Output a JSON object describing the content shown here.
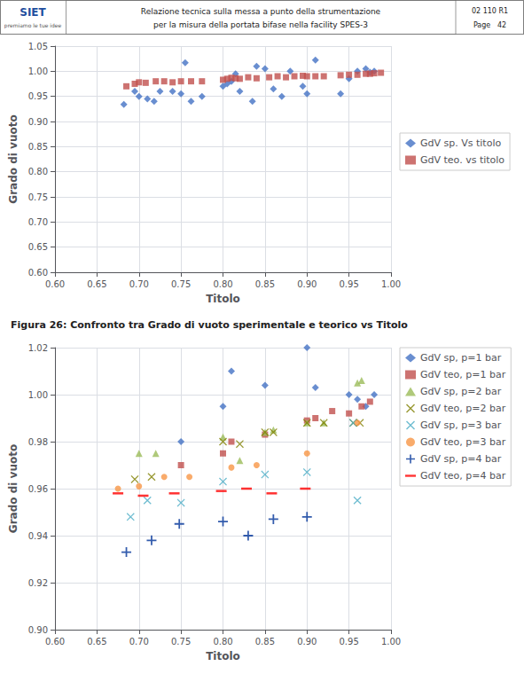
{
  "header": {
    "logo": "SIET",
    "logo_color": "#1F4E9E",
    "logo_tagline": "premiamo le tue idee",
    "text": [
      "Relazione tecnica sulla messa a punto della strumentazione",
      "per la misura della portata bifase nella facility SPES-3"
    ],
    "right": [
      "02 110 R1",
      "Page   42"
    ]
  },
  "caption": "Figura 26: Confronto tra Grado di vuoto sperimentale e teorico vs Titolo",
  "chart_data": [
    {
      "type": "scatter",
      "xlabel": "Titolo",
      "ylabel": "Grado di vuoto",
      "xlim": [
        0.6,
        1.0
      ],
      "ylim": [
        0.6,
        1.05
      ],
      "xticks": [
        {
          "value": 0.6,
          "label": "0.60"
        },
        0.65,
        {
          "value": 0.7,
          "label": "0.70"
        },
        0.75,
        {
          "value": 0.8,
          "label": "0.80"
        },
        0.85,
        {
          "value": 0.9,
          "label": "0.90"
        },
        0.95,
        {
          "value": 1.0,
          "label": "1.00"
        }
      ],
      "yticks": [
        {
          "value": 0.6,
          "label": "0.60"
        },
        0.65,
        {
          "value": 0.7,
          "label": "0.70"
        },
        0.75,
        {
          "value": 0.8,
          "label": "0.80"
        },
        0.85,
        {
          "value": 0.9,
          "label": "0.90"
        },
        0.95,
        {
          "value": 1.0,
          "label": "1.00"
        },
        1.05
      ],
      "grid": true,
      "legend": "right",
      "series": [
        {
          "name": "GdV sp. Vs titolo",
          "color": "#4472C4",
          "marker": "diamond",
          "x": [
            0.682,
            0.695,
            0.7,
            0.71,
            0.718,
            0.725,
            0.74,
            0.75,
            0.755,
            0.762,
            0.775,
            0.8,
            0.805,
            0.81,
            0.815,
            0.82,
            0.835,
            0.84,
            0.85,
            0.86,
            0.87,
            0.88,
            0.895,
            0.9,
            0.91,
            0.94,
            0.95,
            0.96,
            0.97,
            0.975,
            0.98
          ],
          "values": [
            0.934,
            0.96,
            0.95,
            0.945,
            0.94,
            0.96,
            0.96,
            0.955,
            1.017,
            0.94,
            0.95,
            0.97,
            0.975,
            0.98,
            0.995,
            0.96,
            0.94,
            1.01,
            1.005,
            0.965,
            0.95,
            1.0,
            0.97,
            0.955,
            1.022,
            0.955,
            0.985,
            1.0,
            1.005,
            0.998,
            1.0
          ]
        },
        {
          "name": "GdV teo. vs titolo",
          "color": "#C0504D",
          "marker": "square",
          "x": [
            0.685,
            0.695,
            0.7,
            0.708,
            0.72,
            0.73,
            0.74,
            0.75,
            0.762,
            0.775,
            0.8,
            0.805,
            0.81,
            0.815,
            0.82,
            0.83,
            0.84,
            0.855,
            0.865,
            0.875,
            0.885,
            0.895,
            0.9,
            0.91,
            0.92,
            0.94,
            0.95,
            0.96,
            0.97,
            0.975,
            0.98,
            0.988
          ],
          "values": [
            0.97,
            0.975,
            0.978,
            0.977,
            0.98,
            0.98,
            0.978,
            0.98,
            0.98,
            0.98,
            0.983,
            0.985,
            0.987,
            0.986,
            0.985,
            0.988,
            0.986,
            0.988,
            0.99,
            0.988,
            0.99,
            0.991,
            0.99,
            0.99,
            0.99,
            0.992,
            0.993,
            0.993,
            0.995,
            0.995,
            0.996,
            0.997
          ]
        }
      ]
    },
    {
      "type": "scatter",
      "xlabel": "Titolo",
      "ylabel": "Grado di vuoto",
      "xlim": [
        0.6,
        1.0
      ],
      "ylim": [
        0.9,
        1.02
      ],
      "xticks": [
        {
          "value": 0.6,
          "label": "0.60"
        },
        0.65,
        {
          "value": 0.7,
          "label": "0.70"
        },
        0.75,
        {
          "value": 0.8,
          "label": "0.80"
        },
        0.85,
        {
          "value": 0.9,
          "label": "0.90"
        },
        0.95,
        {
          "value": 1.0,
          "label": "1.00"
        }
      ],
      "yticks": [
        {
          "value": 0.9,
          "label": "0.90"
        },
        0.92,
        0.94,
        0.96,
        0.98,
        {
          "value": 1.0,
          "label": "1.00"
        },
        1.02
      ],
      "grid": true,
      "legend": "upper right",
      "series": [
        {
          "name": "GdV sp, p=1 bar",
          "color": "#4472C4",
          "marker": "diamond",
          "x": [
            0.75,
            0.8,
            0.81,
            0.85,
            0.9,
            0.91,
            0.95,
            0.96,
            0.97,
            0.98
          ],
          "values": [
            0.98,
            0.995,
            1.01,
            1.004,
            1.02,
            1.003,
            1.0,
            0.998,
            0.995,
            1.0
          ]
        },
        {
          "name": "GdV teo, p=1 bar",
          "color": "#C0504D",
          "marker": "square",
          "x": [
            0.75,
            0.8,
            0.81,
            0.85,
            0.9,
            0.91,
            0.93,
            0.95,
            0.965,
            0.975
          ],
          "values": [
            0.97,
            0.975,
            0.98,
            0.983,
            0.989,
            0.99,
            0.993,
            0.992,
            0.995,
            0.997
          ]
        },
        {
          "name": "GdV sp, p=2 bar",
          "color": "#9BBB59",
          "marker": "triangle",
          "x": [
            0.7,
            0.72,
            0.8,
            0.82,
            0.85,
            0.86,
            0.9,
            0.92,
            0.96,
            0.965
          ],
          "values": [
            0.975,
            0.975,
            0.982,
            0.972,
            0.984,
            0.985,
            0.988,
            0.988,
            1.005,
            1.006
          ]
        },
        {
          "name": "GdV teo, p=2 bar",
          "color": "#808000",
          "marker": "x",
          "x": [
            0.695,
            0.715,
            0.8,
            0.82,
            0.85,
            0.86,
            0.9,
            0.92,
            0.955,
            0.963
          ],
          "values": [
            0.964,
            0.965,
            0.98,
            0.979,
            0.984,
            0.984,
            0.988,
            0.988,
            0.988,
            0.988
          ]
        },
        {
          "name": "GdV sp, p=3 bar",
          "color": "#4BACC6",
          "marker": "x",
          "x": [
            0.69,
            0.71,
            0.75,
            0.8,
            0.85,
            0.9,
            0.955,
            0.96
          ],
          "values": [
            0.948,
            0.955,
            0.954,
            0.963,
            0.966,
            0.967,
            0.988,
            0.955
          ]
        },
        {
          "name": "GdV teo, p=3 bar",
          "color": "#F79646",
          "marker": "circle",
          "x": [
            0.675,
            0.7,
            0.73,
            0.76,
            0.81,
            0.84,
            0.9,
            0.96
          ],
          "values": [
            0.96,
            0.961,
            0.965,
            0.965,
            0.969,
            0.97,
            0.975,
            0.988
          ]
        },
        {
          "name": "GdV sp, p=4 bar",
          "color": "#003399",
          "marker": "plus",
          "x": [
            0.685,
            0.715,
            0.748,
            0.8,
            0.83,
            0.86,
            0.9
          ],
          "values": [
            0.933,
            0.938,
            0.945,
            0.946,
            0.94,
            0.947,
            0.948
          ]
        },
        {
          "name": "GdV teo, p=4 bar",
          "color": "#FF0000",
          "marker": "minus",
          "x": [
            0.675,
            0.705,
            0.742,
            0.798,
            0.828,
            0.858,
            0.898
          ],
          "values": [
            0.958,
            0.957,
            0.958,
            0.959,
            0.96,
            0.958,
            0.96
          ]
        }
      ]
    }
  ]
}
